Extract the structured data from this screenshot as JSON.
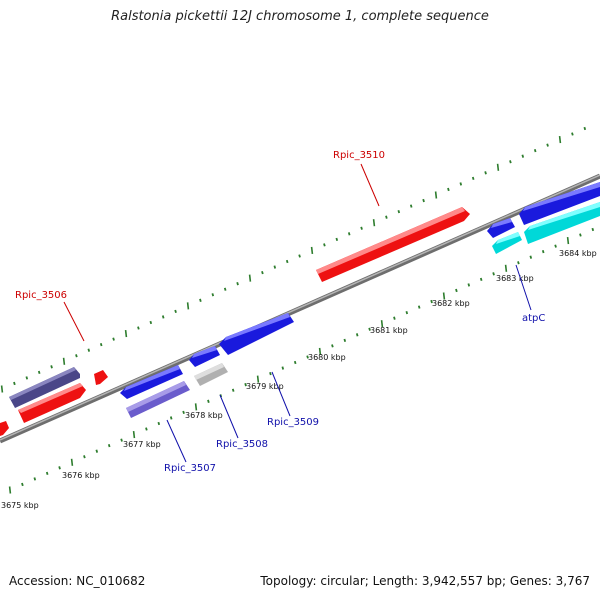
{
  "title": "Ralstonia pickettii 12J chromosome 1, complete sequence",
  "footer": {
    "accession": "Accession: NC_010682",
    "stats": "Topology: circular; Length: 3,942,557 bp; Genes: 3,767"
  },
  "colors": {
    "backbone": "#8a8a8a",
    "tick": "#2e7d2e",
    "forward_gene": "#ee1111",
    "reverse_gene": "#1a1add",
    "label_forward": "#cc0000",
    "label_reverse": "#1010aa"
  },
  "axis": {
    "unit": "kbp",
    "kbp_labels": [
      "3675 kbp",
      "3676 kbp",
      "3677 kbp",
      "3678 kbp",
      "3679 kbp",
      "3680 kbp",
      "3681 kbp",
      "3682 kbp",
      "3683 kbp",
      "3684 kbp"
    ]
  },
  "gene_labels": [
    {
      "name": "Rpic_3510",
      "strand": "forward"
    },
    {
      "name": "Rpic_3506",
      "strand": "forward"
    },
    {
      "name": "atpC",
      "strand": "reverse"
    },
    {
      "name": "Rpic_3509",
      "strand": "reverse"
    },
    {
      "name": "Rpic_3508",
      "strand": "reverse"
    },
    {
      "name": "Rpic_3507",
      "strand": "reverse"
    }
  ]
}
